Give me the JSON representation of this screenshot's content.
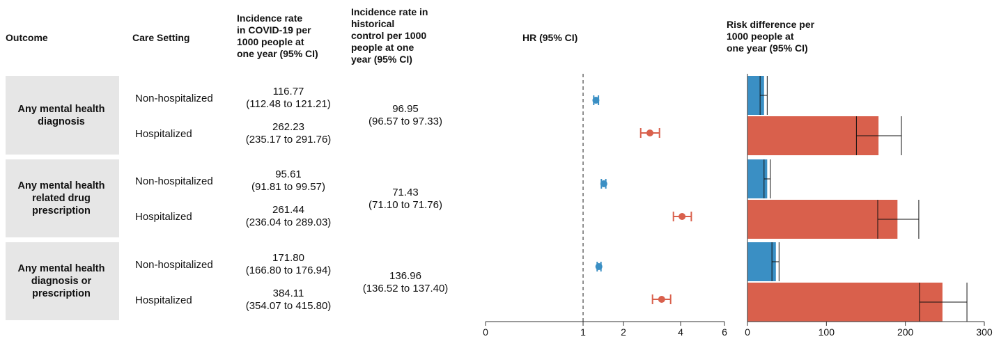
{
  "headers": {
    "outcome": "Outcome",
    "care_setting": "Care Setting",
    "covid_rate": "Incidence rate\nin COVID-19 per\n1000 people at\none year (95% CI)",
    "control_rate": "Incidence rate in\nhistorical\ncontrol per 1000\npeople at one\nyear (95% CI)",
    "hr": "HR (95% CI)",
    "risk_diff": "Risk difference per\n1000 people at\none year (95% CI)"
  },
  "rows": [
    {
      "outcome": "Any mental health\ndiagnosis",
      "control_rate": "96.95\n(96.57 to 97.33)",
      "settings": [
        {
          "setting": "Non-hospitalized",
          "covid_rate": "116.77\n(112.48 to 121.21)"
        },
        {
          "setting": "Hospitalized",
          "covid_rate": "262.23\n(235.17 to 291.76)"
        }
      ]
    },
    {
      "outcome": "Any mental health\nrelated drug\nprescription",
      "control_rate": "71.43\n(71.10 to 71.76)",
      "settings": [
        {
          "setting": "Non-hospitalized",
          "covid_rate": "95.61\n(91.81 to 99.57)"
        },
        {
          "setting": "Hospitalized",
          "covid_rate": "261.44\n(236.04 to 289.03)"
        }
      ]
    },
    {
      "outcome": "Any mental health\ndiagnosis or\nprescription",
      "control_rate": "136.96\n(136.52 to 137.40)",
      "settings": [
        {
          "setting": "Non-hospitalized",
          "covid_rate": "171.80\n(166.80 to 176.94)"
        },
        {
          "setting": "Hospitalized",
          "covid_rate": "384.11\n(354.07 to 415.80)"
        }
      ]
    }
  ],
  "colors": {
    "non_hospitalized": "#3a8fc4",
    "hospitalized": "#d9604c",
    "band": "#e6e6e6"
  },
  "chart_data": [
    {
      "type": "scatter",
      "title": "HR (95% CI)",
      "xlim": [
        0,
        6
      ],
      "xticks": [
        0,
        1,
        2,
        4,
        6
      ],
      "xscale": "sqrt",
      "reference_line": 1,
      "series": [
        {
          "name": "Non-hospitalized",
          "color": "#3a8fc4",
          "values": [
            1.28,
            1.47,
            1.35
          ],
          "lower": [
            1.23,
            1.41,
            1.31
          ],
          "upper": [
            1.34,
            1.52,
            1.4
          ]
        },
        {
          "name": "Hospitalized",
          "color": "#d9604c",
          "values": [
            2.84,
            4.06,
            3.26
          ],
          "lower": [
            2.53,
            3.71,
            2.93
          ],
          "upper": [
            3.18,
            4.45,
            3.6
          ]
        }
      ],
      "categories": [
        "Any mental health diagnosis",
        "Any mental health related drug prescription",
        "Any mental health diagnosis or prescription"
      ]
    },
    {
      "type": "bar",
      "title": "Risk difference per 1000 people at one year (95% CI)",
      "xlim": [
        0,
        300
      ],
      "xticks": [
        0,
        100,
        200,
        300
      ],
      "categories": [
        "Any mental health diagnosis",
        "Any mental health related drug prescription",
        "Any mental health diagnosis or prescription"
      ],
      "series": [
        {
          "name": "Non-hospitalized",
          "color": "#3a8fc4",
          "values": [
            21,
            25,
            36
          ],
          "lower": [
            16,
            21,
            31
          ],
          "upper": [
            25,
            29,
            40
          ]
        },
        {
          "name": "Hospitalized",
          "color": "#d9604c",
          "values": [
            166,
            190,
            247
          ],
          "lower": [
            138,
            165,
            218
          ],
          "upper": [
            195,
            217,
            278
          ]
        }
      ]
    }
  ]
}
